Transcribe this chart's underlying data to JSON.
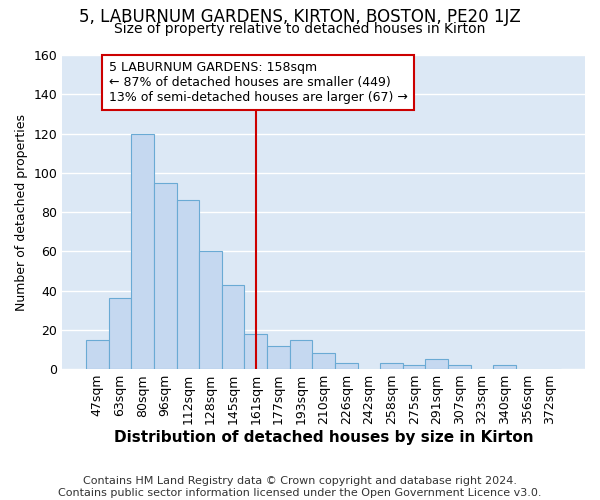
{
  "title": "5, LABURNUM GARDENS, KIRTON, BOSTON, PE20 1JZ",
  "subtitle": "Size of property relative to detached houses in Kirton",
  "xlabel": "Distribution of detached houses by size in Kirton",
  "ylabel": "Number of detached properties",
  "footer_line1": "Contains HM Land Registry data © Crown copyright and database right 2024.",
  "footer_line2": "Contains public sector information licensed under the Open Government Licence v3.0.",
  "categories": [
    "47sqm",
    "63sqm",
    "80sqm",
    "96sqm",
    "112sqm",
    "128sqm",
    "145sqm",
    "161sqm",
    "177sqm",
    "193sqm",
    "210sqm",
    "226sqm",
    "242sqm",
    "258sqm",
    "275sqm",
    "291sqm",
    "307sqm",
    "323sqm",
    "340sqm",
    "356sqm",
    "372sqm"
  ],
  "values": [
    15,
    36,
    120,
    95,
    86,
    60,
    43,
    18,
    12,
    15,
    8,
    3,
    0,
    3,
    2,
    5,
    2,
    0,
    2,
    0,
    0
  ],
  "bar_color": "#c5d8f0",
  "bar_edge_color": "#6aaad4",
  "highlight_index": 7,
  "highlight_line_color": "#cc0000",
  "annotation_text": "5 LABURNUM GARDENS: 158sqm\n← 87% of detached houses are smaller (449)\n13% of semi-detached houses are larger (67) →",
  "annotation_box_color": "#ffffff",
  "annotation_box_edge_color": "#cc0000",
  "ylim": [
    0,
    160
  ],
  "yticks": [
    0,
    20,
    40,
    60,
    80,
    100,
    120,
    140,
    160
  ],
  "background_color": "#dce8f5",
  "fig_background_color": "#ffffff",
  "grid_color": "#ffffff",
  "title_fontsize": 12,
  "subtitle_fontsize": 10,
  "xlabel_fontsize": 11,
  "ylabel_fontsize": 9,
  "tick_fontsize": 9,
  "annotation_fontsize": 9,
  "footer_fontsize": 8
}
